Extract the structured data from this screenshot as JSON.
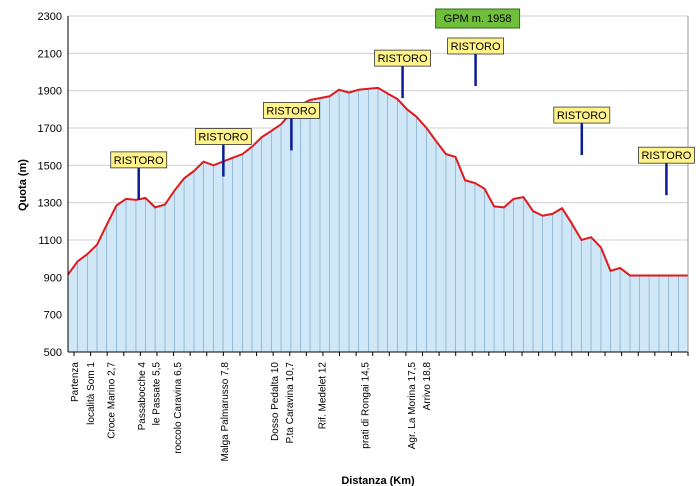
{
  "chart_data": {
    "type": "area",
    "xlabel": "Distanza (Km)",
    "ylabel": "Quota (m)",
    "xlim": [
      0,
      18.8
    ],
    "ylim": [
      500,
      2300
    ],
    "yticks": [
      500,
      700,
      900,
      1100,
      1300,
      1500,
      1700,
      1900,
      2100,
      2300
    ],
    "colors": {
      "line": "#e0191c",
      "fill": "#cfe7f6",
      "drop": "#8ab2cf",
      "marker": "#0a1b9a",
      "callout": "#fff38a",
      "gpm": "#6fbf3a"
    },
    "x": [
      0,
      0.29,
      0.59,
      0.88,
      1.17,
      1.47,
      1.76,
      2.06,
      2.35,
      2.64,
      2.94,
      3.23,
      3.52,
      3.82,
      4.11,
      4.41,
      4.7,
      4.99,
      5.29,
      5.58,
      5.87,
      6.17,
      6.46,
      6.76,
      7.05,
      7.34,
      7.64,
      7.93,
      8.22,
      8.52,
      8.81,
      9.11,
      9.4,
      9.69,
      9.99,
      10.28,
      10.57,
      10.87,
      11.16,
      11.46,
      11.75,
      12.04,
      12.34,
      12.63,
      12.92,
      13.22,
      13.51,
      13.81,
      14.1,
      14.39,
      14.69,
      14.98,
      15.27,
      15.57,
      15.86,
      16.16,
      16.45,
      16.74,
      17.04,
      17.33,
      17.62,
      17.92,
      18.21,
      18.51,
      18.8
    ],
    "values": [
      915,
      985,
      1025,
      1075,
      1180,
      1285,
      1320,
      1315,
      1325,
      1275,
      1290,
      1365,
      1430,
      1470,
      1520,
      1500,
      1520,
      1540,
      1560,
      1600,
      1650,
      1685,
      1720,
      1780,
      1825,
      1850,
      1860,
      1870,
      1905,
      1890,
      1905,
      1910,
      1915,
      1885,
      1855,
      1800,
      1760,
      1700,
      1630,
      1560,
      1545,
      1420,
      1405,
      1375,
      1280,
      1275,
      1320,
      1330,
      1255,
      1230,
      1240,
      1270,
      1190,
      1100,
      1115,
      1060,
      935,
      950,
      910,
      910,
      910,
      910,
      910,
      910,
      910
    ],
    "tick_labels": [
      {
        "x": 0.0,
        "text": "Partenza"
      },
      {
        "x": 0.95,
        "text": "località Som    1"
      },
      {
        "x": 2.2,
        "text": "Croce Marino    2,7"
      },
      {
        "x": 4.05,
        "text": "Passabocche    4"
      },
      {
        "x": 4.9,
        "text": "le Passate    5,5"
      },
      {
        "x": 6.2,
        "text": "roccolo Caravina    6,5"
      },
      {
        "x": 9.05,
        "text": "Malga Palmarusso 7,8"
      },
      {
        "x": 12.05,
        "text": "Dosso Pedalta    10"
      },
      {
        "x": 12.95,
        "text": "P.ta Caravina  10,7"
      },
      {
        "x": 14.9,
        "text": "Rif. Medelet    12"
      },
      {
        "x": 17.5,
        "text": "prati di Rongai    14,5"
      },
      {
        "x": 20.3,
        "text": "Agr. La Morina  17,5"
      },
      {
        "x": 21.2,
        "text": "Arrivo  18,8"
      }
    ],
    "callouts": [
      {
        "text": "RISTORO",
        "x": 3.9,
        "y": 1315
      },
      {
        "text": "RISTORO",
        "x": 9.0,
        "y": 1440
      },
      {
        "text": "RISTORO",
        "x": 13.1,
        "y": 1580
      },
      {
        "text": "RISTORO",
        "x": 19.8,
        "y": 1860
      },
      {
        "text": "RISTORO",
        "x": 24.2,
        "y": 1925
      },
      {
        "text": "RISTORO",
        "x": 30.6,
        "y": 1555
      },
      {
        "text": "RISTORO",
        "x": 35.7,
        "y": 1340
      }
    ],
    "gpm": {
      "text": "GPM m. 1958",
      "x": 24.2,
      "y": 1925
    }
  }
}
